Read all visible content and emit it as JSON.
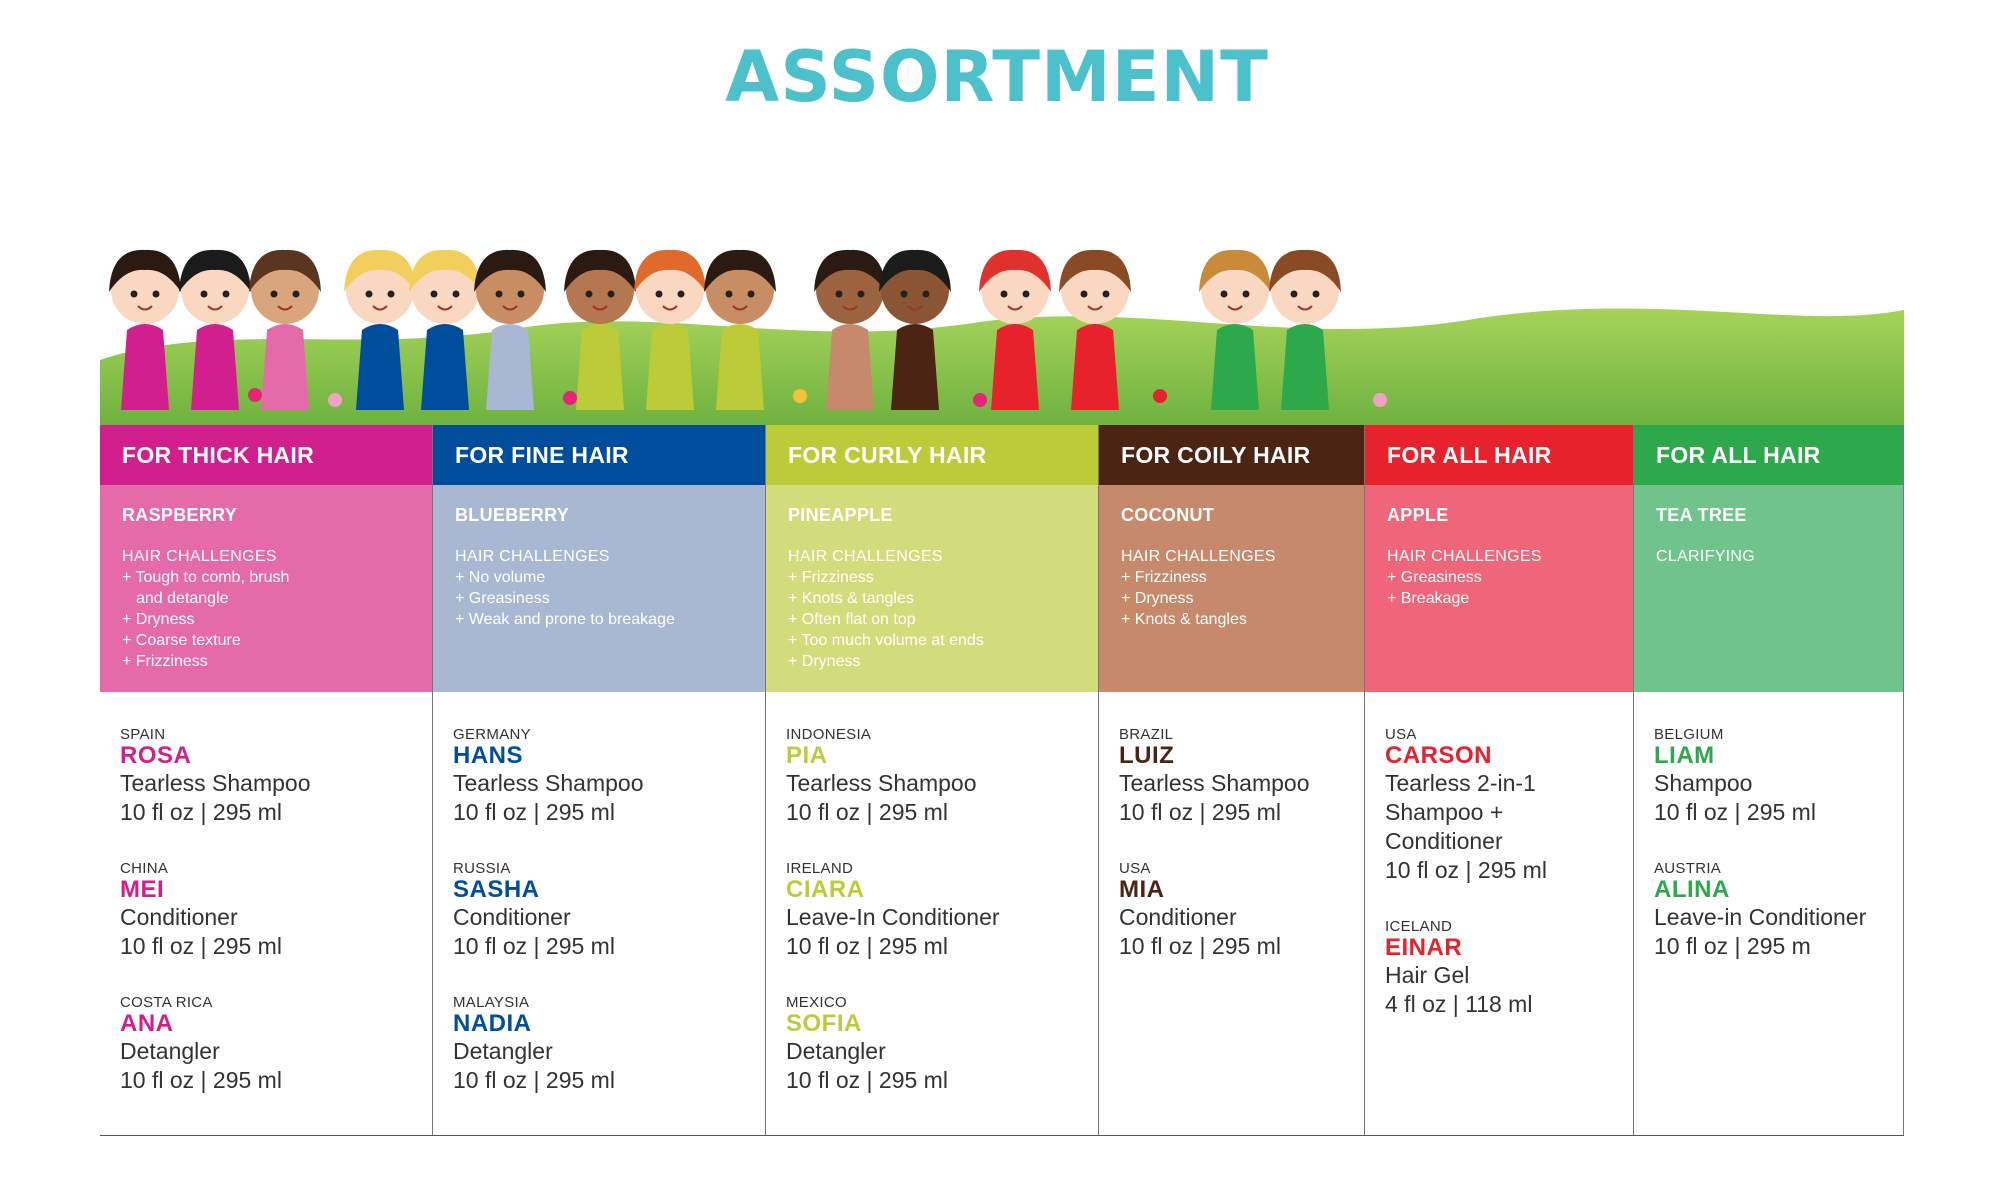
{
  "title": "ASSORTMENT",
  "colors": {
    "title": "#4cc1cc",
    "thick": "#d21f8e",
    "thick_light": "#e46aaa",
    "fine": "#004e9b",
    "fine_light": "#a8b7d2",
    "curly": "#bccc39",
    "curly_light": "#d3dc7a",
    "coily": "#4b2413",
    "coily_light": "#c6896c",
    "all_red": "#e7222d",
    "all_red_light": "#ef667a",
    "all_green": "#2da84b",
    "all_green_light": "#71c38c"
  },
  "columns": [
    {
      "header": "FOR THICK HAIR",
      "flavor": "RASPBERRY",
      "challenges_title": "HAIR CHALLENGES",
      "challenges": [
        "+ Tough to comb, brush",
        "and detangle",
        "+ Dryness",
        "+ Coarse texture",
        "+ Frizziness"
      ],
      "products": [
        {
          "country": "SPAIN",
          "name": "ROSA",
          "type": "Tearless Shampoo",
          "size": "10 fl oz | 295 ml"
        },
        {
          "country": "CHINA",
          "name": "MEI",
          "type": "Conditioner",
          "size": "10 fl oz | 295 ml"
        },
        {
          "country": "COSTA RICA",
          "name": "ANA",
          "type": "Detangler",
          "size": "10 fl oz | 295 ml"
        }
      ]
    },
    {
      "header": "FOR FINE HAIR",
      "flavor": "BLUEBERRY",
      "challenges_title": "HAIR CHALLENGES",
      "challenges": [
        "+ No volume",
        "+ Greasiness",
        "+ Weak and prone to breakage"
      ],
      "products": [
        {
          "country": "GERMANY",
          "name": "HANS",
          "type": "Tearless Shampoo",
          "size": "10 fl oz | 295 ml"
        },
        {
          "country": "RUSSIA",
          "name": "SASHA",
          "type": "Conditioner",
          "size": "10 fl oz | 295 ml"
        },
        {
          "country": "MALAYSIA",
          "name": "NADIA",
          "type": "Detangler",
          "size": "10 fl oz | 295 ml"
        }
      ]
    },
    {
      "header": "FOR CURLY HAIR",
      "flavor": "PINEAPPLE",
      "challenges_title": "HAIR CHALLENGES",
      "challenges": [
        "+ Frizziness",
        "+ Knots & tangles",
        "+ Often flat on top",
        "+ Too much volume at ends",
        "+ Dryness"
      ],
      "products": [
        {
          "country": "INDONESIA",
          "name": "PIA",
          "type": "Tearless Shampoo",
          "size": "10 fl oz | 295 ml"
        },
        {
          "country": "IRELAND",
          "name": "CIARA",
          "type": "Leave-In Conditioner",
          "size": "10 fl oz | 295 ml"
        },
        {
          "country": "MEXICO",
          "name": "SOFIA",
          "type": "Detangler",
          "size": "10 fl oz | 295 ml"
        }
      ]
    },
    {
      "header": "FOR COILY HAIR",
      "flavor": "COCONUT",
      "challenges_title": "HAIR CHALLENGES",
      "challenges": [
        "+ Frizziness",
        "+ Dryness",
        "+ Knots & tangles"
      ],
      "products": [
        {
          "country": "BRAZIL",
          "name": "LUIZ",
          "type": "Tearless Shampoo",
          "size": "10 fl oz | 295 ml"
        },
        {
          "country": "USA",
          "name": "MIA",
          "type": "Conditioner",
          "size": "10 fl oz | 295 ml"
        }
      ]
    },
    {
      "header": "FOR ALL HAIR",
      "flavor": "APPLE",
      "challenges_title": "HAIR CHALLENGES",
      "challenges": [
        "+ Greasiness",
        "+ Breakage"
      ],
      "products": [
        {
          "country": "USA",
          "name": "CARSON",
          "type": "Tearless 2-in-1 Shampoo + Conditioner",
          "size": "10 fl oz | 295 ml"
        },
        {
          "country": "ICELAND",
          "name": "EINAR",
          "type": "Hair Gel",
          "size": "4 fl oz | 118 ml"
        }
      ]
    },
    {
      "header": "FOR ALL HAIR",
      "flavor": "TEA TREE",
      "challenges_title": "CLARIFYING",
      "challenges": [],
      "products": [
        {
          "country": "BELGIUM",
          "name": "LIAM",
          "type": "Shampoo",
          "size": "10 fl oz | 295 ml"
        },
        {
          "country": "AUSTRIA",
          "name": "ALINA",
          "type": "Leave-in Conditioner",
          "size": "10 fl oz | 295 m"
        }
      ]
    }
  ]
}
